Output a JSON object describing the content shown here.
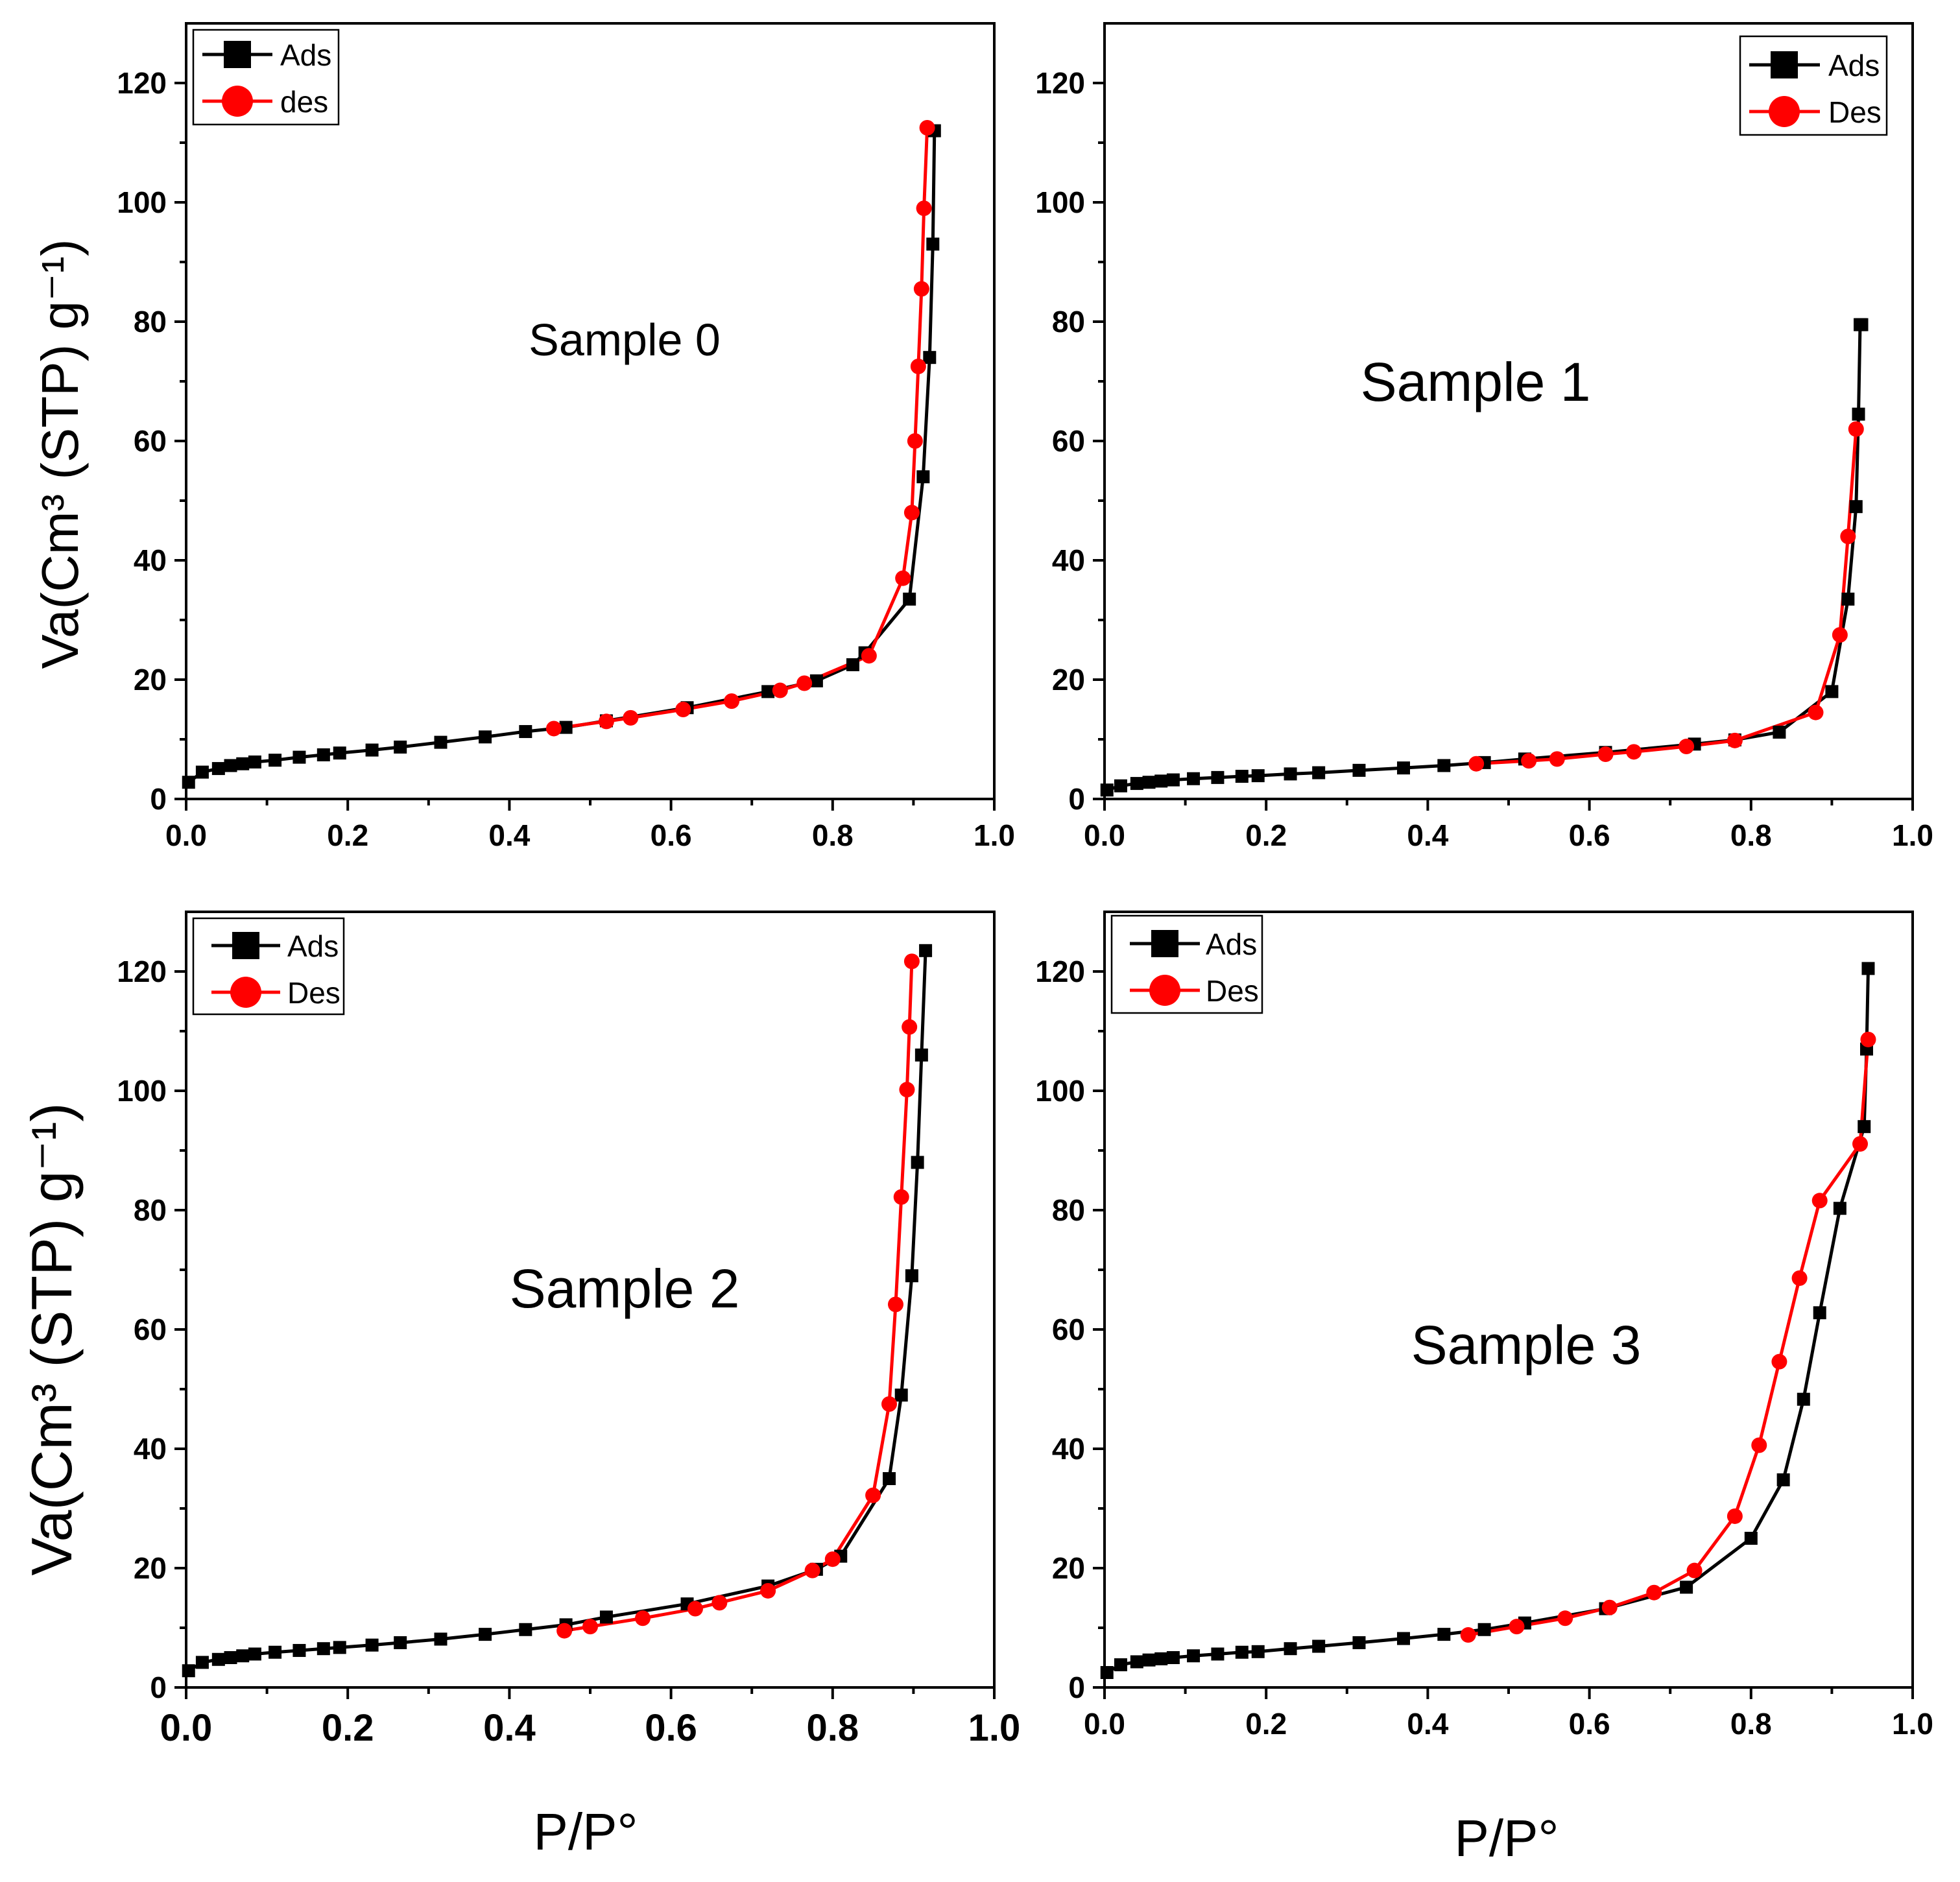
{
  "figure": {
    "ylabel_top": "Va(Cm³ (STP) g⁻¹)",
    "ylabel_bottom": "Va(Cm³ (STP) g⁻¹)",
    "xlabel_left": "P/P°",
    "xlabel_right": "P/P°"
  },
  "colors": {
    "ads": "#000000",
    "des": "#ff0000"
  },
  "chart_data": [
    {
      "type": "line",
      "title": "Sample 0",
      "xlim": [
        0,
        1.0
      ],
      "ylim": [
        0,
        130
      ],
      "xticks": [
        "0.0",
        "0.2",
        "0.4",
        "0.6",
        "0.8",
        "1.0"
      ],
      "yticks": [
        "0",
        "20",
        "40",
        "60",
        "80",
        "100",
        "120"
      ],
      "legend": {
        "position": "top-left",
        "ads": "Ads",
        "des": "des"
      },
      "series": [
        {
          "name": "Ads",
          "marker": "square",
          "x": [
            0.003,
            0.02,
            0.04,
            0.055,
            0.07,
            0.085,
            0.11,
            0.14,
            0.17,
            0.19,
            0.23,
            0.265,
            0.315,
            0.37,
            0.42,
            0.47,
            0.52,
            0.62,
            0.72,
            0.78,
            0.825,
            0.84,
            0.895,
            0.912,
            0.92,
            0.924,
            0.926
          ],
          "y": [
            2.8,
            4.5,
            5.1,
            5.6,
            5.9,
            6.2,
            6.5,
            7.0,
            7.4,
            7.7,
            8.2,
            8.7,
            9.5,
            10.4,
            11.3,
            12.0,
            13.1,
            15.3,
            18.0,
            19.8,
            22.5,
            24.5,
            33.5,
            54.0,
            74.0,
            93.0,
            112.0
          ]
        },
        {
          "name": "des",
          "marker": "circle",
          "x": [
            0.455,
            0.52,
            0.55,
            0.615,
            0.675,
            0.735,
            0.765,
            0.845,
            0.887,
            0.898,
            0.902,
            0.906,
            0.91,
            0.913,
            0.917
          ],
          "y": [
            11.8,
            13.0,
            13.6,
            15.0,
            16.4,
            18.2,
            19.4,
            24.0,
            37.0,
            48.0,
            60.0,
            72.5,
            85.5,
            99.0,
            112.5
          ]
        }
      ]
    },
    {
      "type": "line",
      "title": "Sample 1",
      "xlim": [
        0,
        1.0
      ],
      "ylim": [
        0,
        130
      ],
      "xticks": [
        "0.0",
        "0.2",
        "0.4",
        "0.6",
        "0.8",
        "1.0"
      ],
      "yticks": [
        "0",
        "20",
        "40",
        "60",
        "80",
        "100",
        "120"
      ],
      "legend": {
        "position": "top-right",
        "ads": "Ads",
        "des": "Des"
      },
      "series": [
        {
          "name": "Ads",
          "marker": "square",
          "x": [
            0.003,
            0.02,
            0.04,
            0.055,
            0.07,
            0.085,
            0.11,
            0.14,
            0.17,
            0.19,
            0.23,
            0.265,
            0.315,
            0.37,
            0.42,
            0.47,
            0.52,
            0.62,
            0.73,
            0.78,
            0.835,
            0.9,
            0.92,
            0.93,
            0.933,
            0.935,
            0.937
          ],
          "y": [
            1.5,
            2.2,
            2.6,
            2.8,
            3.0,
            3.2,
            3.4,
            3.6,
            3.8,
            3.9,
            4.2,
            4.4,
            4.8,
            5.2,
            5.6,
            6.1,
            6.7,
            7.8,
            9.2,
            9.9,
            11.2,
            18.0,
            33.5,
            49.0,
            64.5,
            79.5,
            79.5
          ]
        },
        {
          "name": "Des",
          "marker": "circle",
          "x": [
            0.46,
            0.525,
            0.56,
            0.62,
            0.655,
            0.72,
            0.78,
            0.88,
            0.91,
            0.92,
            0.93
          ],
          "y": [
            5.9,
            6.4,
            6.7,
            7.5,
            7.9,
            8.8,
            9.8,
            14.5,
            27.5,
            44.0,
            62.0
          ]
        }
      ]
    },
    {
      "type": "line",
      "title": "Sample 2",
      "xlim": [
        0,
        1.0
      ],
      "ylim": [
        0,
        130
      ],
      "xticks": [
        "0.0",
        "0.2",
        "0.4",
        "0.6",
        "0.8",
        "1.0"
      ],
      "yticks": [
        "0",
        "20",
        "40",
        "60",
        "80",
        "100",
        "120"
      ],
      "legend": {
        "position": "top-left",
        "ads": "Ads",
        "des": "Des"
      },
      "series": [
        {
          "name": "Ads",
          "marker": "square",
          "x": [
            0.003,
            0.02,
            0.04,
            0.055,
            0.07,
            0.085,
            0.11,
            0.14,
            0.17,
            0.19,
            0.23,
            0.265,
            0.315,
            0.37,
            0.42,
            0.47,
            0.52,
            0.62,
            0.72,
            0.78,
            0.81,
            0.87,
            0.885,
            0.898,
            0.905,
            0.91,
            0.915
          ],
          "y": [
            2.8,
            4.2,
            4.7,
            5.0,
            5.3,
            5.6,
            5.9,
            6.2,
            6.5,
            6.7,
            7.1,
            7.5,
            8.1,
            8.9,
            9.7,
            10.5,
            11.8,
            14.0,
            17.0,
            19.8,
            22.0,
            35.0,
            49.0,
            69.0,
            88.0,
            106.0,
            123.5
          ]
        },
        {
          "name": "Des",
          "marker": "circle",
          "x": [
            0.468,
            0.5,
            0.565,
            0.63,
            0.66,
            0.72,
            0.775,
            0.8,
            0.85,
            0.87,
            0.878,
            0.885,
            0.892,
            0.895,
            0.898
          ],
          "y": [
            9.5,
            10.2,
            11.6,
            13.2,
            14.2,
            16.2,
            19.6,
            21.5,
            32.2,
            47.5,
            64.2,
            82.2,
            100.2,
            110.7,
            121.7
          ]
        }
      ]
    },
    {
      "type": "line",
      "title": "Sample 3",
      "xlim": [
        0,
        1.0
      ],
      "ylim": [
        0,
        130
      ],
      "xticks": [
        "0.0",
        "0.2",
        "0.4",
        "0.6",
        "0.8",
        "1.0"
      ],
      "yticks": [
        "0",
        "20",
        "40",
        "60",
        "80",
        "100",
        "120"
      ],
      "legend": {
        "position": "top-left",
        "ads": "Ads",
        "des": "Des"
      },
      "series": [
        {
          "name": "Ads",
          "marker": "square",
          "x": [
            0.003,
            0.02,
            0.04,
            0.055,
            0.07,
            0.085,
            0.11,
            0.14,
            0.17,
            0.19,
            0.23,
            0.265,
            0.315,
            0.37,
            0.42,
            0.47,
            0.52,
            0.62,
            0.72,
            0.8,
            0.84,
            0.865,
            0.885,
            0.91,
            0.94,
            0.943,
            0.945
          ],
          "y": [
            2.5,
            3.8,
            4.3,
            4.6,
            4.8,
            5.0,
            5.3,
            5.6,
            5.9,
            6.0,
            6.5,
            6.9,
            7.5,
            8.2,
            8.9,
            9.7,
            10.8,
            13.2,
            16.8,
            25.0,
            34.8,
            48.3,
            62.8,
            80.3,
            94.0,
            107.0,
            120.5
          ]
        },
        {
          "name": "Des",
          "marker": "circle",
          "x": [
            0.45,
            0.51,
            0.57,
            0.625,
            0.68,
            0.73,
            0.78,
            0.81,
            0.835,
            0.86,
            0.885,
            0.935,
            0.945
          ],
          "y": [
            8.8,
            10.2,
            11.6,
            13.4,
            15.9,
            19.6,
            28.7,
            40.6,
            54.6,
            68.6,
            81.6,
            91.1,
            108.6
          ]
        }
      ]
    }
  ]
}
